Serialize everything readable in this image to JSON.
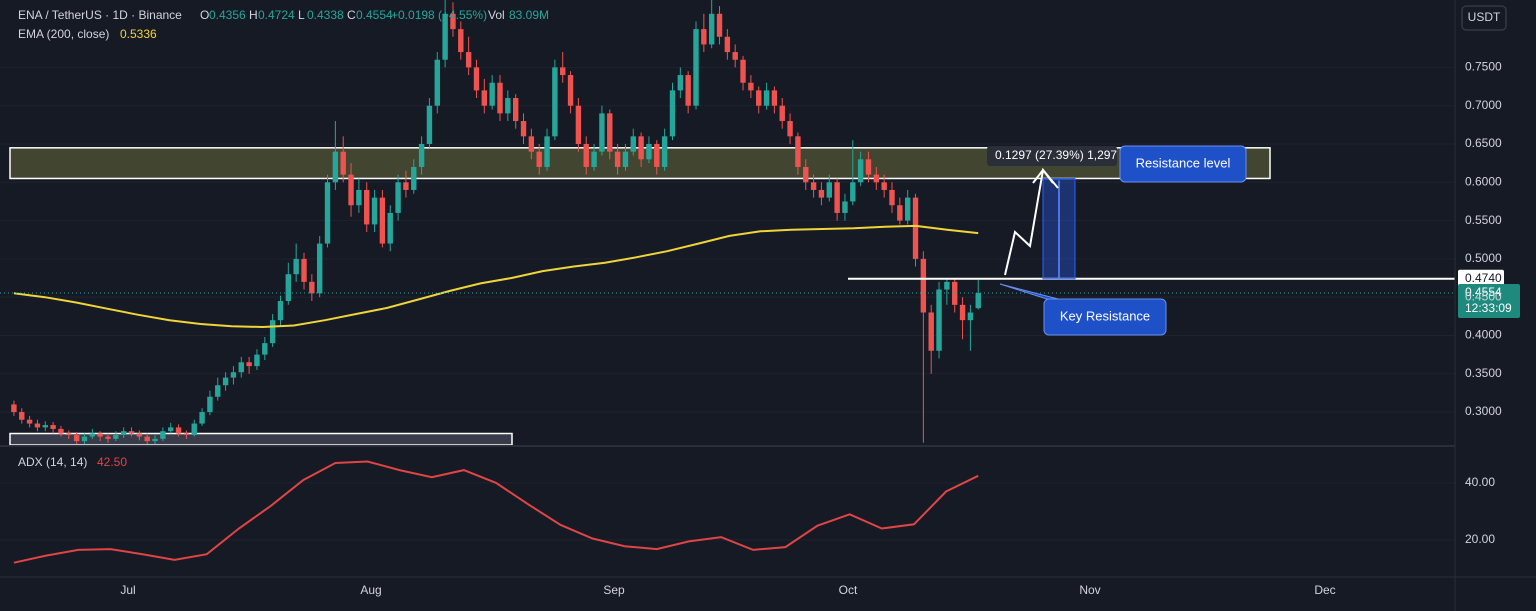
{
  "header": {
    "symbol": "ENA / TetherUS · 1D · Binance",
    "ohlc_labels": [
      "O",
      "H",
      "L",
      "C"
    ],
    "change": "+0.0198 (+4.55%)",
    "volume_label": "Vol",
    "volume": "83.09M",
    "currency": "USDT",
    "countdown": "12:33:09"
  },
  "chart_data": {
    "type": "candlestick",
    "up_color": "#26a69a",
    "down_color": "#ef5350",
    "grid": true,
    "ylim": [
      0.257,
      0.838
    ],
    "yticks": [
      {
        "value": 0.3,
        "label": "0.3000"
      },
      {
        "value": 0.35,
        "label": "0.3500"
      },
      {
        "value": 0.4,
        "label": "0.4000"
      },
      {
        "value": 0.45,
        "label": "0.4500"
      },
      {
        "value": 0.5,
        "label": "0.5000"
      },
      {
        "value": 0.55,
        "label": "0.5500"
      },
      {
        "value": 0.6,
        "label": "0.6000"
      },
      {
        "value": 0.65,
        "label": "0.6500"
      },
      {
        "value": 0.7,
        "label": "0.7000"
      },
      {
        "value": 0.75,
        "label": "0.7500"
      }
    ],
    "time_labels": [
      "Jul",
      "Aug",
      "Sep",
      "Oct",
      "Nov",
      "Dec"
    ],
    "candles": [
      [
        0.31,
        0.315,
        0.295,
        0.3
      ],
      [
        0.3,
        0.305,
        0.285,
        0.29
      ],
      [
        0.29,
        0.295,
        0.28,
        0.285
      ],
      [
        0.285,
        0.29,
        0.275,
        0.28
      ],
      [
        0.28,
        0.288,
        0.275,
        0.283
      ],
      [
        0.283,
        0.287,
        0.272,
        0.278
      ],
      [
        0.278,
        0.282,
        0.268,
        0.272
      ],
      [
        0.272,
        0.276,
        0.265,
        0.27
      ],
      [
        0.27,
        0.274,
        0.258,
        0.262
      ],
      [
        0.262,
        0.272,
        0.258,
        0.268
      ],
      [
        0.268,
        0.278,
        0.265,
        0.272
      ],
      [
        0.272,
        0.275,
        0.262,
        0.268
      ],
      [
        0.268,
        0.272,
        0.26,
        0.265
      ],
      [
        0.265,
        0.275,
        0.262,
        0.27
      ],
      [
        0.27,
        0.28,
        0.266,
        0.275
      ],
      [
        0.275,
        0.28,
        0.268,
        0.272
      ],
      [
        0.272,
        0.276,
        0.263,
        0.268
      ],
      [
        0.268,
        0.272,
        0.258,
        0.262
      ],
      [
        0.262,
        0.27,
        0.258,
        0.265
      ],
      [
        0.265,
        0.28,
        0.262,
        0.275
      ],
      [
        0.275,
        0.286,
        0.272,
        0.28
      ],
      [
        0.28,
        0.284,
        0.268,
        0.272
      ],
      [
        0.272,
        0.276,
        0.265,
        0.27
      ],
      [
        0.27,
        0.29,
        0.268,
        0.285
      ],
      [
        0.285,
        0.305,
        0.282,
        0.3
      ],
      [
        0.3,
        0.328,
        0.296,
        0.32
      ],
      [
        0.32,
        0.345,
        0.315,
        0.335
      ],
      [
        0.335,
        0.352,
        0.328,
        0.345
      ],
      [
        0.345,
        0.36,
        0.336,
        0.352
      ],
      [
        0.352,
        0.372,
        0.345,
        0.365
      ],
      [
        0.365,
        0.372,
        0.35,
        0.36
      ],
      [
        0.36,
        0.382,
        0.355,
        0.375
      ],
      [
        0.375,
        0.398,
        0.368,
        0.39
      ],
      [
        0.39,
        0.428,
        0.385,
        0.42
      ],
      [
        0.42,
        0.452,
        0.412,
        0.445
      ],
      [
        0.445,
        0.495,
        0.44,
        0.48
      ],
      [
        0.48,
        0.52,
        0.47,
        0.5
      ],
      [
        0.5,
        0.508,
        0.46,
        0.47
      ],
      [
        0.47,
        0.48,
        0.445,
        0.455
      ],
      [
        0.455,
        0.53,
        0.45,
        0.52
      ],
      [
        0.52,
        0.61,
        0.515,
        0.6
      ],
      [
        0.6,
        0.68,
        0.59,
        0.64
      ],
      [
        0.64,
        0.66,
        0.6,
        0.61
      ],
      [
        0.61,
        0.625,
        0.555,
        0.57
      ],
      [
        0.57,
        0.605,
        0.56,
        0.59
      ],
      [
        0.59,
        0.6,
        0.535,
        0.545
      ],
      [
        0.545,
        0.59,
        0.535,
        0.58
      ],
      [
        0.58,
        0.59,
        0.515,
        0.52
      ],
      [
        0.52,
        0.57,
        0.51,
        0.56
      ],
      [
        0.56,
        0.61,
        0.55,
        0.6
      ],
      [
        0.6,
        0.615,
        0.58,
        0.59
      ],
      [
        0.59,
        0.63,
        0.585,
        0.62
      ],
      [
        0.62,
        0.66,
        0.61,
        0.65
      ],
      [
        0.65,
        0.71,
        0.645,
        0.7
      ],
      [
        0.7,
        0.77,
        0.69,
        0.76
      ],
      [
        0.76,
        0.84,
        0.75,
        0.82
      ],
      [
        0.82,
        0.835,
        0.79,
        0.8
      ],
      [
        0.8,
        0.81,
        0.76,
        0.77
      ],
      [
        0.77,
        0.79,
        0.74,
        0.75
      ],
      [
        0.75,
        0.76,
        0.71,
        0.72
      ],
      [
        0.72,
        0.735,
        0.69,
        0.7
      ],
      [
        0.7,
        0.74,
        0.695,
        0.73
      ],
      [
        0.73,
        0.74,
        0.68,
        0.69
      ],
      [
        0.69,
        0.72,
        0.68,
        0.71
      ],
      [
        0.71,
        0.715,
        0.67,
        0.68
      ],
      [
        0.68,
        0.69,
        0.65,
        0.66
      ],
      [
        0.66,
        0.67,
        0.63,
        0.64
      ],
      [
        0.64,
        0.65,
        0.61,
        0.62
      ],
      [
        0.62,
        0.67,
        0.615,
        0.66
      ],
      [
        0.66,
        0.76,
        0.655,
        0.75
      ],
      [
        0.75,
        0.77,
        0.73,
        0.74
      ],
      [
        0.74,
        0.745,
        0.69,
        0.7
      ],
      [
        0.7,
        0.71,
        0.64,
        0.65
      ],
      [
        0.65,
        0.66,
        0.61,
        0.62
      ],
      [
        0.62,
        0.65,
        0.615,
        0.64
      ],
      [
        0.64,
        0.7,
        0.635,
        0.69
      ],
      [
        0.69,
        0.695,
        0.63,
        0.64
      ],
      [
        0.64,
        0.65,
        0.61,
        0.62
      ],
      [
        0.62,
        0.65,
        0.615,
        0.64
      ],
      [
        0.64,
        0.67,
        0.635,
        0.66
      ],
      [
        0.66,
        0.665,
        0.62,
        0.63
      ],
      [
        0.63,
        0.66,
        0.625,
        0.65
      ],
      [
        0.65,
        0.655,
        0.61,
        0.62
      ],
      [
        0.62,
        0.67,
        0.615,
        0.66
      ],
      [
        0.66,
        0.73,
        0.655,
        0.72
      ],
      [
        0.72,
        0.75,
        0.71,
        0.74
      ],
      [
        0.74,
        0.745,
        0.69,
        0.7
      ],
      [
        0.7,
        0.81,
        0.695,
        0.8
      ],
      [
        0.8,
        0.82,
        0.77,
        0.78
      ],
      [
        0.78,
        0.84,
        0.775,
        0.82
      ],
      [
        0.82,
        0.83,
        0.78,
        0.79
      ],
      [
        0.79,
        0.8,
        0.76,
        0.77
      ],
      [
        0.77,
        0.78,
        0.75,
        0.76
      ],
      [
        0.76,
        0.765,
        0.72,
        0.73
      ],
      [
        0.73,
        0.74,
        0.71,
        0.72
      ],
      [
        0.72,
        0.725,
        0.69,
        0.7
      ],
      [
        0.7,
        0.73,
        0.695,
        0.72
      ],
      [
        0.72,
        0.725,
        0.69,
        0.7
      ],
      [
        0.7,
        0.71,
        0.67,
        0.68
      ],
      [
        0.68,
        0.69,
        0.65,
        0.66
      ],
      [
        0.66,
        0.665,
        0.61,
        0.62
      ],
      [
        0.62,
        0.63,
        0.59,
        0.6
      ],
      [
        0.6,
        0.61,
        0.58,
        0.59
      ],
      [
        0.59,
        0.6,
        0.57,
        0.58
      ],
      [
        0.58,
        0.61,
        0.575,
        0.6
      ],
      [
        0.6,
        0.605,
        0.55,
        0.56
      ],
      [
        0.56,
        0.585,
        0.55,
        0.575
      ],
      [
        0.575,
        0.655,
        0.57,
        0.6
      ],
      [
        0.6,
        0.64,
        0.595,
        0.63
      ],
      [
        0.63,
        0.64,
        0.6,
        0.61
      ],
      [
        0.61,
        0.62,
        0.59,
        0.6
      ],
      [
        0.6,
        0.61,
        0.58,
        0.59
      ],
      [
        0.59,
        0.6,
        0.56,
        0.57
      ],
      [
        0.57,
        0.58,
        0.545,
        0.55
      ],
      [
        0.55,
        0.59,
        0.545,
        0.58
      ],
      [
        0.58,
        0.585,
        0.49,
        0.5
      ],
      [
        0.5,
        0.51,
        0.26,
        0.43
      ],
      [
        0.43,
        0.44,
        0.35,
        0.38
      ],
      [
        0.38,
        0.47,
        0.37,
        0.46
      ],
      [
        0.46,
        0.475,
        0.44,
        0.47
      ],
      [
        0.47,
        0.475,
        0.43,
        0.44
      ],
      [
        0.44,
        0.45,
        0.395,
        0.42
      ],
      [
        0.42,
        0.44,
        0.38,
        0.43
      ],
      [
        0.4356,
        0.4724,
        0.4338,
        0.4554
      ]
    ],
    "ema": {
      "name": "EMA (200, close)",
      "color": "#f0d53a",
      "values": [
        0.455,
        0.45,
        0.443,
        0.435,
        0.427,
        0.42,
        0.415,
        0.412,
        0.411,
        0.413,
        0.42,
        0.428,
        0.436,
        0.447,
        0.458,
        0.468,
        0.475,
        0.484,
        0.49,
        0.495,
        0.502,
        0.51,
        0.52,
        0.53,
        0.536,
        0.538,
        0.539,
        0.54,
        0.542,
        0.543,
        0.538,
        0.5336
      ]
    },
    "resistance_zone": [
      0.605,
      0.645
    ],
    "support_zone_top": 0.272,
    "key_resistance": {
      "value": 0.474,
      "label": "0.4740"
    },
    "measure_label": "0.1297 (27.39%) 1,297",
    "annotations": [
      "Resistance level",
      "Key Resistance"
    ],
    "adx": {
      "name": "ADX (14, 14)",
      "color": "#e04545",
      "last_label": "42.50",
      "ylim": [
        7.7,
        52.6
      ],
      "yticks": [
        {
          "value": 20,
          "label": "20.00"
        },
        {
          "value": 40,
          "label": "40.00"
        }
      ],
      "values": [
        12.0,
        14.5,
        16.5,
        16.8,
        15.0,
        13.0,
        15.0,
        24.0,
        32.0,
        41.0,
        47.0,
        47.5,
        44.5,
        42.0,
        44.5,
        40.0,
        32.5,
        25.3,
        20.5,
        17.8,
        16.8,
        19.5,
        21.0,
        16.5,
        17.5,
        25.0,
        29.0,
        24.0,
        25.5,
        37.0,
        42.5
      ]
    }
  }
}
